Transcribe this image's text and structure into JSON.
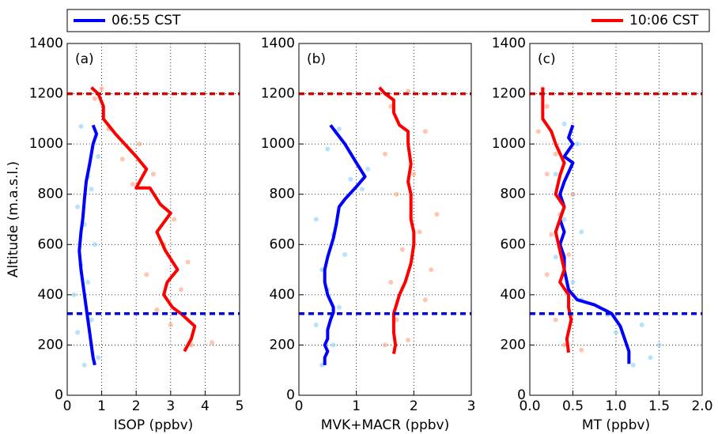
{
  "legend": [
    {
      "name": "06:55 CST",
      "color": "#0000ff"
    },
    {
      "name": "10:06 CST",
      "color": "#ff0000"
    }
  ],
  "chart_data": [
    {
      "type": "line",
      "label": "(a)",
      "xlabel": "ISOP (ppbv)",
      "ylabel": "Altitude (m.a.s.l.)",
      "xlim": [
        0,
        5
      ],
      "xticks": [
        0,
        1,
        2,
        3,
        4,
        5
      ],
      "ylim": [
        0,
        1400
      ],
      "yticks": [
        0,
        200,
        400,
        600,
        800,
        1000,
        1200,
        1400
      ],
      "grid": true,
      "hlines": [
        {
          "value": 1200,
          "color": "#cc0000"
        },
        {
          "value": 325,
          "color": "#0000dd"
        }
      ],
      "series": [
        {
          "type": "scatter",
          "color": "#87cefa",
          "x": [
            0.5,
            0.9,
            0.3,
            0.7,
            0.2,
            0.6,
            0.4,
            0.8,
            0.5,
            0.3,
            0.7,
            0.6,
            0.9,
            0.4
          ],
          "y": [
            120,
            150,
            250,
            300,
            400,
            450,
            520,
            600,
            680,
            750,
            820,
            870,
            950,
            1070
          ]
        },
        {
          "type": "scatter",
          "color": "#ffa07a",
          "x": [
            3.6,
            4.2,
            3.0,
            2.6,
            3.3,
            2.3,
            3.5,
            2.8,
            3.1,
            1.9,
            2.5,
            1.6,
            1.2,
            0.8,
            1.0,
            2.1
          ],
          "y": [
            200,
            210,
            280,
            340,
            420,
            480,
            530,
            600,
            700,
            840,
            880,
            940,
            1060,
            1180,
            1220,
            1000
          ]
        },
        {
          "type": "line",
          "color": "#0000ff",
          "x": [
            0.8,
            0.75,
            0.7,
            0.65,
            0.6,
            0.5,
            0.4,
            0.35,
            0.4,
            0.45,
            0.5,
            0.55,
            0.65,
            0.75,
            0.85,
            0.75
          ],
          "y": [
            120,
            150,
            200,
            250,
            300,
            400,
            500,
            575,
            650,
            700,
            780,
            850,
            920,
            1000,
            1040,
            1075
          ]
        },
        {
          "type": "line",
          "color": "#ff0000",
          "x": [
            3.4,
            3.6,
            3.7,
            3.3,
            3.05,
            2.8,
            2.9,
            3.2,
            2.85,
            2.6,
            3.0,
            2.7,
            2.4,
            2.0,
            2.3,
            2.0,
            1.4,
            1.05,
            1.05,
            0.9,
            0.7
          ],
          "y": [
            175,
            225,
            275,
            325,
            350,
            400,
            450,
            500,
            575,
            650,
            725,
            760,
            825,
            825,
            900,
            950,
            1040,
            1100,
            1150,
            1200,
            1225
          ]
        }
      ]
    },
    {
      "type": "line",
      "label": "(b)",
      "xlabel": "MVK+MACR (ppbv)",
      "xlim": [
        0,
        3
      ],
      "xticks": [
        0,
        1,
        2,
        3
      ],
      "ylim": [
        0,
        1400
      ],
      "yticks": [
        0,
        200,
        400,
        600,
        800,
        1000,
        1200,
        1400
      ],
      "grid": true,
      "hlines": [
        {
          "value": 1200,
          "color": "#cc0000"
        },
        {
          "value": 325,
          "color": "#0000dd"
        }
      ],
      "series": [
        {
          "type": "scatter",
          "color": "#87cefa",
          "x": [
            0.4,
            0.6,
            0.3,
            0.7,
            0.5,
            0.4,
            0.8,
            0.6,
            1.1,
            0.9,
            1.2,
            0.5,
            0.7,
            0.3
          ],
          "y": [
            120,
            200,
            280,
            350,
            420,
            500,
            560,
            640,
            820,
            860,
            900,
            980,
            1060,
            700
          ]
        },
        {
          "type": "scatter",
          "color": "#ffa07a",
          "x": [
            1.5,
            1.9,
            1.7,
            2.2,
            1.6,
            2.3,
            1.8,
            2.1,
            2.4,
            1.7,
            2.0,
            1.5,
            2.2,
            1.6,
            1.9
          ],
          "y": [
            200,
            220,
            300,
            380,
            450,
            500,
            580,
            650,
            720,
            800,
            880,
            960,
            1050,
            1150,
            1210
          ]
        },
        {
          "type": "line",
          "color": "#0000ff",
          "x": [
            0.45,
            0.45,
            0.5,
            0.45,
            0.5,
            0.5,
            0.55,
            0.6,
            0.6,
            0.5,
            0.45,
            0.45,
            0.5,
            0.6,
            0.65,
            0.7,
            0.8,
            1.0,
            1.15,
            1.0,
            0.8,
            0.6,
            0.55
          ],
          "y": [
            120,
            150,
            175,
            200,
            225,
            260,
            300,
            330,
            350,
            400,
            450,
            500,
            550,
            625,
            680,
            750,
            780,
            830,
            870,
            925,
            1000,
            1060,
            1075
          ]
        },
        {
          "type": "line",
          "color": "#ff0000",
          "x": [
            1.65,
            1.68,
            1.65,
            1.65,
            1.75,
            1.85,
            1.95,
            2.0,
            2.0,
            1.95,
            1.95,
            1.9,
            1.95,
            1.9,
            1.9,
            1.75,
            1.65,
            1.65,
            1.5,
            1.4
          ],
          "y": [
            165,
            200,
            250,
            325,
            400,
            450,
            525,
            600,
            650,
            700,
            800,
            850,
            920,
            1000,
            1050,
            1075,
            1125,
            1175,
            1200,
            1225
          ]
        }
      ]
    },
    {
      "type": "line",
      "label": "(c)",
      "xlabel": "MT (ppbv)",
      "xlim": [
        0,
        2
      ],
      "xticks": [
        {
          "value": 0,
          "label": "0.0"
        },
        {
          "value": 0.5,
          "label": "0.5"
        },
        {
          "value": 1,
          "label": "1.0"
        },
        {
          "value": 1.5,
          "label": "1.5"
        },
        {
          "value": 2,
          "label": "2.0"
        }
      ],
      "ylim": [
        0,
        1400
      ],
      "yticks": [
        0,
        200,
        400,
        600,
        800,
        1000,
        1200,
        1400
      ],
      "grid": true,
      "hlines": [
        {
          "value": 1200,
          "color": "#cc0000"
        },
        {
          "value": 325,
          "color": "#0000dd"
        }
      ],
      "series": [
        {
          "type": "scatter",
          "color": "#87cefa",
          "x": [
            1.2,
            1.4,
            1.0,
            1.5,
            0.9,
            0.6,
            0.5,
            0.3,
            0.6,
            0.4,
            0.5,
            0.3,
            0.55,
            0.4,
            1.3
          ],
          "y": [
            120,
            150,
            250,
            200,
            320,
            380,
            450,
            550,
            650,
            700,
            800,
            880,
            1000,
            1080,
            280
          ]
        },
        {
          "type": "scatter",
          "color": "#ffa07a",
          "x": [
            0.4,
            0.6,
            0.3,
            0.5,
            0.2,
            0.45,
            0.25,
            0.35,
            0.5,
            0.2,
            0.3,
            0.1,
            0.2,
            0.15
          ],
          "y": [
            200,
            180,
            300,
            400,
            480,
            560,
            640,
            720,
            800,
            880,
            960,
            1050,
            1150,
            1220
          ]
        },
        {
          "type": "line",
          "color": "#0000ff",
          "x": [
            1.15,
            1.15,
            1.1,
            1.05,
            0.95,
            0.75,
            0.55,
            0.45,
            0.4,
            0.4,
            0.35,
            0.4,
            0.35,
            0.4,
            0.35,
            0.4,
            0.5,
            0.4,
            0.5,
            0.45,
            0.5
          ],
          "y": [
            125,
            175,
            225,
            275,
            325,
            360,
            380,
            420,
            500,
            550,
            600,
            650,
            700,
            750,
            800,
            850,
            925,
            950,
            1000,
            1025,
            1075
          ]
        },
        {
          "type": "line",
          "color": "#ff0000",
          "x": [
            0.45,
            0.43,
            0.48,
            0.45,
            0.45,
            0.35,
            0.4,
            0.35,
            0.3,
            0.35,
            0.4,
            0.3,
            0.35,
            0.4,
            0.3,
            0.25,
            0.15,
            0.15,
            0.15,
            0.15
          ],
          "y": [
            170,
            225,
            300,
            350,
            400,
            450,
            500,
            575,
            650,
            700,
            750,
            800,
            875,
            925,
            1000,
            1050,
            1100,
            1150,
            1200,
            1225
          ]
        }
      ]
    }
  ]
}
